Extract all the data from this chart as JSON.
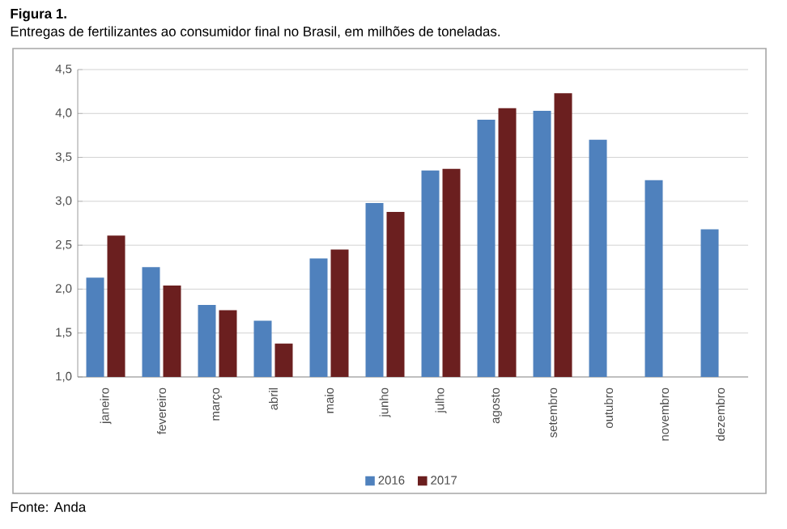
{
  "chart_data": {
    "type": "bar",
    "title": "Figura 1.",
    "subtitle": "Entregas de fertilizantes ao consumidor final no Brasil, em milhões de toneladas.",
    "categories": [
      "janeiro",
      "fevereiro",
      "março",
      "abril",
      "maio",
      "junho",
      "julho",
      "agosto",
      "setembro",
      "outubro",
      "novembro",
      "dezembro"
    ],
    "series": [
      {
        "name": "2016",
        "color": "#4f81bd",
        "values": [
          2.13,
          2.25,
          1.82,
          1.64,
          2.35,
          2.98,
          3.35,
          3.93,
          4.03,
          3.7,
          3.24,
          2.68
        ]
      },
      {
        "name": "2017",
        "color": "#6b1f1f",
        "values": [
          2.61,
          2.04,
          1.76,
          1.38,
          2.45,
          2.88,
          3.37,
          4.06,
          4.23,
          null,
          null,
          null
        ]
      }
    ],
    "ylim": [
      1.0,
      4.5
    ],
    "yticks": [
      {
        "value": 1.0,
        "label": "1,0"
      },
      {
        "value": 1.5,
        "label": "1,5"
      },
      {
        "value": 2.0,
        "label": "2,0"
      },
      {
        "value": 2.5,
        "label": "2,5"
      },
      {
        "value": 3.0,
        "label": "3,0"
      },
      {
        "value": 3.5,
        "label": "3,5"
      },
      {
        "value": 4.0,
        "label": "4,0"
      },
      {
        "value": 4.5,
        "label": "4,5"
      }
    ],
    "grid": "y",
    "legend": "bottom",
    "annotations": [
      "Fonte: Anda"
    ]
  }
}
